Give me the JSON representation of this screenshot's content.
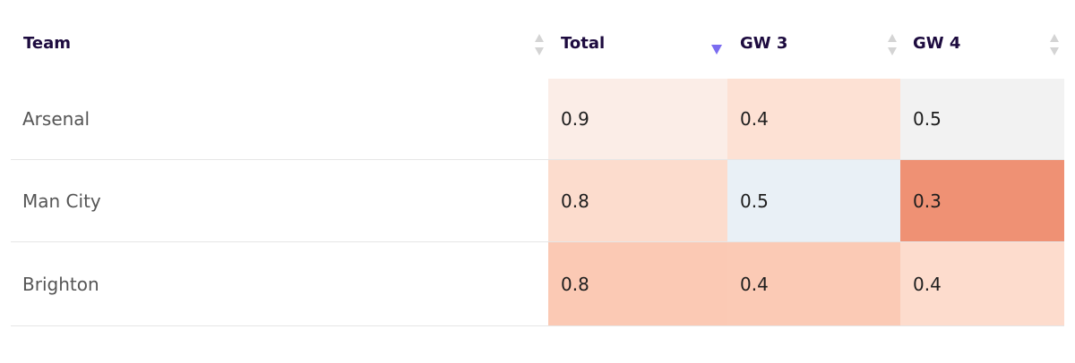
{
  "table": {
    "headers": [
      "Team",
      "Total",
      "GW 3",
      "GW 4"
    ],
    "rows": [
      [
        "Arsenal",
        0.9,
        0.4,
        0.5
      ],
      [
        "Man City",
        0.8,
        0.5,
        0.3
      ],
      [
        "Brighton",
        0.8,
        0.4,
        0.4
      ]
    ]
  }
}
